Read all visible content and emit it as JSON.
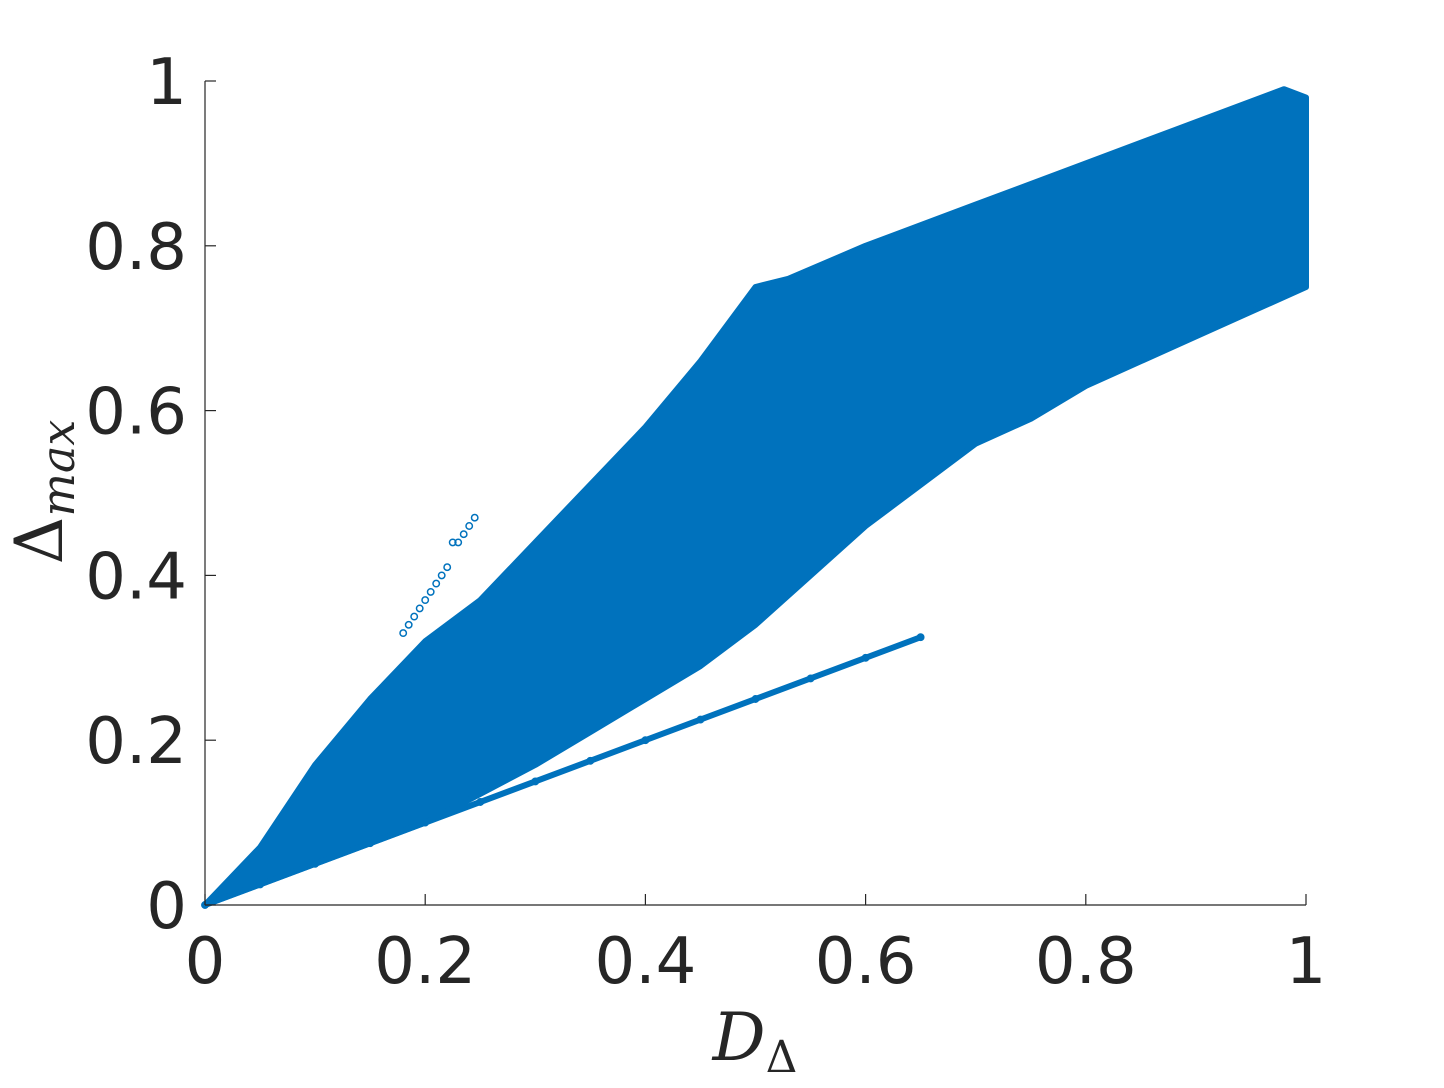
{
  "chart_data": {
    "type": "scatter",
    "title": "",
    "xlabel": "D_Δ",
    "xlabel_main": "D",
    "xlabel_sub": "Δ",
    "ylabel": "Δ_max",
    "ylabel_main": "Δ",
    "ylabel_sub": "max",
    "xlim": [
      0,
      1
    ],
    "ylim": [
      0,
      1
    ],
    "xticks": [
      "0",
      "0.2",
      "0.4",
      "0.6",
      "0.8",
      "1"
    ],
    "yticks": [
      "0",
      "0.2",
      "0.4",
      "0.6",
      "0.8",
      "1"
    ],
    "grid": false,
    "marker": "open-circle",
    "color": "#0072BD",
    "series": [
      {
        "region": "main-cloud",
        "boundary": [
          [
            0.0,
            0.0
          ],
          [
            0.05,
            0.07
          ],
          [
            0.1,
            0.17
          ],
          [
            0.15,
            0.25
          ],
          [
            0.2,
            0.32
          ],
          [
            0.25,
            0.37
          ],
          [
            0.3,
            0.44
          ],
          [
            0.35,
            0.51
          ],
          [
            0.4,
            0.58
          ],
          [
            0.45,
            0.66
          ],
          [
            0.5,
            0.75
          ],
          [
            0.53,
            0.76
          ],
          [
            0.6,
            0.8
          ],
          [
            0.7,
            0.85
          ],
          [
            0.8,
            0.9
          ],
          [
            0.9,
            0.95
          ],
          [
            0.98,
            0.99
          ],
          [
            1.0,
            0.98
          ],
          [
            1.0,
            0.75
          ],
          [
            0.95,
            0.72
          ],
          [
            0.9,
            0.69
          ],
          [
            0.85,
            0.66
          ],
          [
            0.8,
            0.63
          ],
          [
            0.75,
            0.59
          ],
          [
            0.7,
            0.56
          ],
          [
            0.65,
            0.51
          ],
          [
            0.6,
            0.46
          ],
          [
            0.55,
            0.4
          ],
          [
            0.5,
            0.34
          ],
          [
            0.45,
            0.29
          ],
          [
            0.4,
            0.25
          ],
          [
            0.35,
            0.21
          ],
          [
            0.3,
            0.17
          ],
          [
            0.25,
            0.135
          ],
          [
            0.2,
            0.1
          ],
          [
            0.1,
            0.05
          ],
          [
            0.0,
            0.0
          ]
        ]
      },
      {
        "region": "linear-branch",
        "points": [
          [
            0.0,
            0.0
          ],
          [
            0.05,
            0.025
          ],
          [
            0.1,
            0.05
          ],
          [
            0.15,
            0.075
          ],
          [
            0.2,
            0.1
          ],
          [
            0.25,
            0.125
          ],
          [
            0.3,
            0.15
          ],
          [
            0.35,
            0.175
          ],
          [
            0.4,
            0.2
          ],
          [
            0.45,
            0.225
          ],
          [
            0.5,
            0.25
          ],
          [
            0.55,
            0.275
          ],
          [
            0.6,
            0.3
          ],
          [
            0.65,
            0.325
          ]
        ]
      },
      {
        "region": "outlier-spur",
        "points": [
          [
            0.18,
            0.33
          ],
          [
            0.185,
            0.34
          ],
          [
            0.19,
            0.35
          ],
          [
            0.195,
            0.36
          ],
          [
            0.2,
            0.37
          ],
          [
            0.205,
            0.38
          ],
          [
            0.21,
            0.39
          ],
          [
            0.215,
            0.4
          ],
          [
            0.22,
            0.41
          ],
          [
            0.225,
            0.44
          ],
          [
            0.23,
            0.44
          ],
          [
            0.235,
            0.45
          ],
          [
            0.24,
            0.46
          ],
          [
            0.245,
            0.47
          ]
        ]
      }
    ]
  }
}
